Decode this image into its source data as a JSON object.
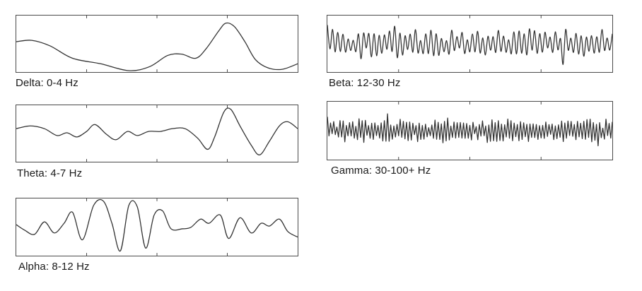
{
  "waves": [
    {
      "id": "delta",
      "label": "Delta: 0-4 Hz",
      "stroke": "#333333"
    },
    {
      "id": "beta",
      "label": "Beta: 12-30 Hz",
      "stroke": "#333333"
    },
    {
      "id": "theta",
      "label": "Theta: 4-7 Hz",
      "stroke": "#333333"
    },
    {
      "id": "gamma",
      "label": "Gamma: 30-100+ Hz",
      "stroke": "#333333"
    },
    {
      "id": "alpha",
      "label": "Alpha: 8-12 Hz",
      "stroke": "#333333"
    }
  ]
}
